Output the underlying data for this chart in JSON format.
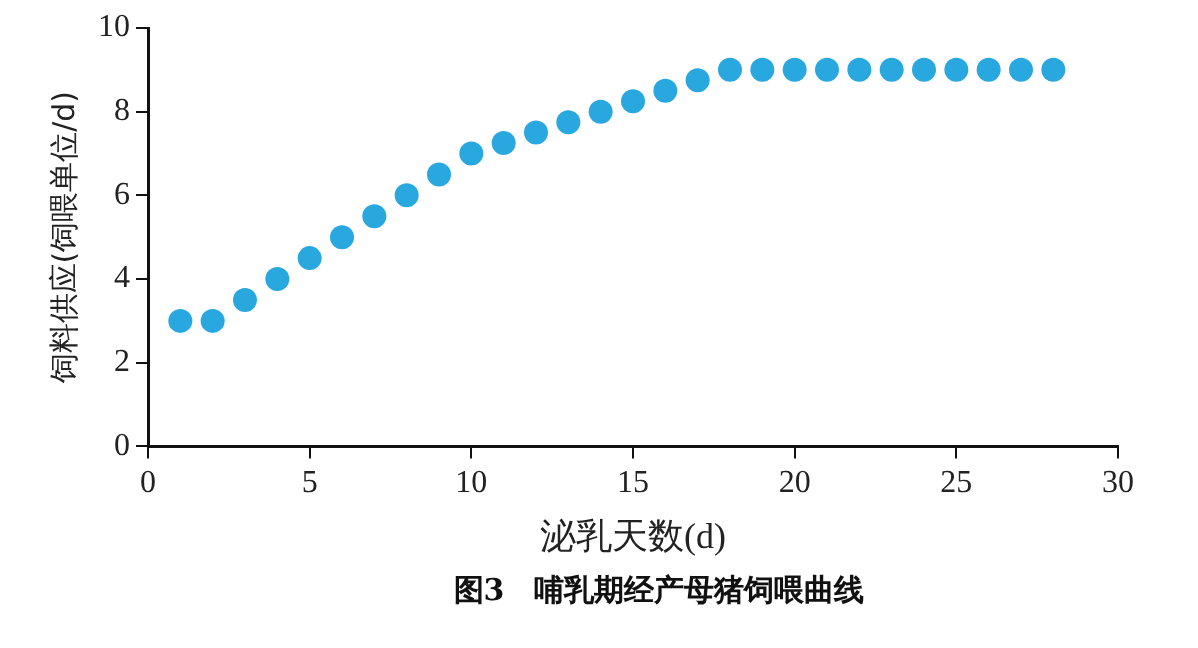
{
  "chart_data": {
    "type": "scatter",
    "title": "图3　哺乳期经产母猪饲喂曲线",
    "xlabel": "泌乳天数(d)",
    "ylabel": "饲料供应(饲喂单位/d)",
    "x": [
      1,
      2,
      3,
      4,
      5,
      6,
      7,
      8,
      9,
      10,
      11,
      12,
      13,
      14,
      15,
      16,
      17,
      18,
      19,
      20,
      21,
      22,
      23,
      24,
      25,
      26,
      27,
      28
    ],
    "series": [
      {
        "color": "#29a8e0",
        "values": [
          3,
          3,
          3.5,
          4,
          4.5,
          5,
          5.5,
          6,
          6.5,
          7,
          7.25,
          7.5,
          7.75,
          8,
          8.25,
          8.5,
          8.75,
          9,
          9,
          9,
          9,
          9,
          9,
          9,
          9,
          9,
          9,
          9
        ]
      }
    ],
    "xlim": [
      0,
      30
    ],
    "xticks": [
      0,
      5,
      10,
      15,
      20,
      25,
      30
    ],
    "ylim": [
      0,
      10
    ],
    "yticks": [
      0,
      2,
      4,
      6,
      8,
      10
    ],
    "marker": "circle",
    "grid": false,
    "legend": false
  }
}
